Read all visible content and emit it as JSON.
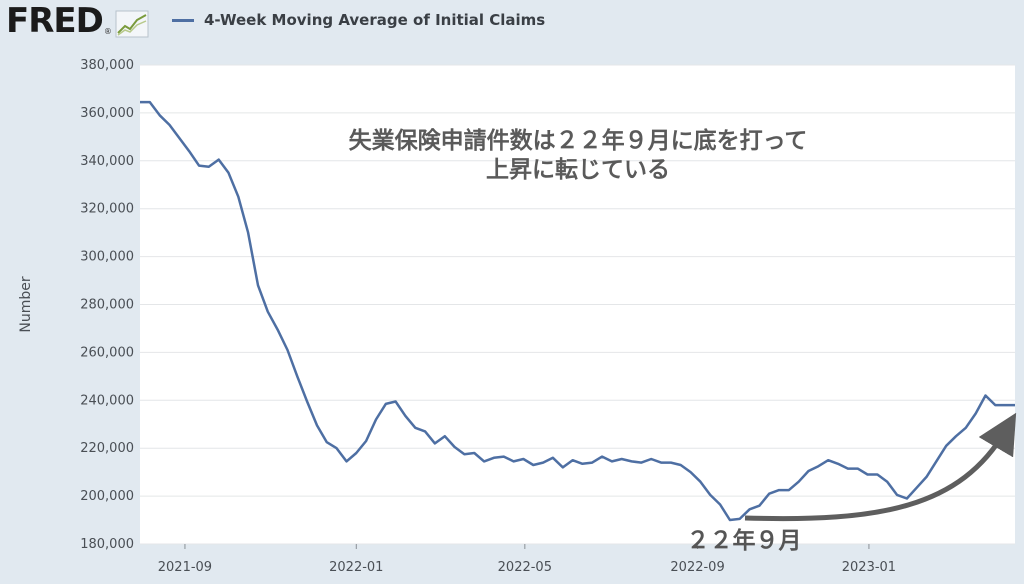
{
  "header": {
    "logo_text": "FRED",
    "logo_reg": "®",
    "legend_label": "4-Week Moving Average of Initial Claims",
    "series_color": "#4e6fa3"
  },
  "chart_data": {
    "type": "line",
    "title": "",
    "xlabel": "",
    "ylabel": "Number",
    "ylim": [
      180000,
      380000
    ],
    "yticks": [
      180000,
      200000,
      220000,
      240000,
      260000,
      280000,
      300000,
      320000,
      340000,
      360000,
      380000
    ],
    "ytick_labels": [
      "180,000",
      "200,000",
      "220,000",
      "240,000",
      "260,000",
      "280,000",
      "300,000",
      "320,000",
      "340,000",
      "360,000",
      "380,000"
    ],
    "xlim": [
      "2021-07-31",
      "2023-04-15"
    ],
    "xticks": [
      "2021-09-01",
      "2022-01-01",
      "2022-05-01",
      "2022-09-01",
      "2023-01-01"
    ],
    "xtick_labels": [
      "2021-09",
      "2022-01",
      "2022-05",
      "2022-09",
      "2023-01"
    ],
    "grid": true,
    "series": [
      {
        "name": "4-Week Moving Average of Initial Claims",
        "color": "#4e6fa3",
        "x": [
          "2021-07-31",
          "2021-08-07",
          "2021-08-14",
          "2021-08-21",
          "2021-08-28",
          "2021-09-04",
          "2021-09-11",
          "2021-09-18",
          "2021-09-25",
          "2021-10-02",
          "2021-10-09",
          "2021-10-16",
          "2021-10-23",
          "2021-10-30",
          "2021-11-06",
          "2021-11-13",
          "2021-11-20",
          "2021-11-27",
          "2021-12-04",
          "2021-12-11",
          "2021-12-18",
          "2021-12-25",
          "2022-01-01",
          "2022-01-08",
          "2022-01-15",
          "2022-01-22",
          "2022-01-29",
          "2022-02-05",
          "2022-02-12",
          "2022-02-19",
          "2022-02-26",
          "2022-03-05",
          "2022-03-12",
          "2022-03-19",
          "2022-03-26",
          "2022-04-02",
          "2022-04-09",
          "2022-04-16",
          "2022-04-23",
          "2022-04-30",
          "2022-05-07",
          "2022-05-14",
          "2022-05-21",
          "2022-05-28",
          "2022-06-04",
          "2022-06-11",
          "2022-06-18",
          "2022-06-25",
          "2022-07-02",
          "2022-07-09",
          "2022-07-16",
          "2022-07-23",
          "2022-07-30",
          "2022-08-06",
          "2022-08-13",
          "2022-08-20",
          "2022-08-27",
          "2022-09-03",
          "2022-09-10",
          "2022-09-17",
          "2022-09-24",
          "2022-10-01",
          "2022-10-08",
          "2022-10-15",
          "2022-10-22",
          "2022-10-29",
          "2022-11-05",
          "2022-11-12",
          "2022-11-19",
          "2022-11-26",
          "2022-12-03",
          "2022-12-10",
          "2022-12-17",
          "2022-12-24",
          "2022-12-31",
          "2023-01-07",
          "2023-01-14",
          "2023-01-21",
          "2023-01-28",
          "2023-02-04",
          "2023-02-11",
          "2023-02-18",
          "2023-02-25",
          "2023-03-04",
          "2023-03-11",
          "2023-03-18",
          "2023-03-25",
          "2023-04-01",
          "2023-04-08",
          "2023-04-15"
        ],
        "values": [
          364500,
          364500,
          359000,
          355000,
          349500,
          344000,
          338000,
          337500,
          340500,
          335000,
          325000,
          310000,
          288000,
          277000,
          269500,
          261000,
          250000,
          239500,
          229500,
          222500,
          220000,
          214500,
          218000,
          223000,
          232000,
          238500,
          239500,
          233500,
          228500,
          227000,
          222000,
          225000,
          220500,
          217500,
          218000,
          214500,
          216000,
          216500,
          214500,
          215500,
          213000,
          214000,
          216000,
          212000,
          215000,
          213500,
          214000,
          216500,
          214500,
          215500,
          214500,
          214000,
          215500,
          214000,
          214000,
          213000,
          210000,
          206000,
          200500,
          196500,
          190000,
          190500,
          194500,
          196000,
          201000,
          202500,
          202500,
          206000,
          210500,
          212500,
          215000,
          213500,
          211500,
          211500,
          209000,
          209000,
          206000,
          200500,
          199000,
          203500,
          208000,
          214500,
          221000,
          225000,
          228500,
          234500,
          242000,
          238000,
          238000,
          238000
        ]
      }
    ],
    "annotations": [
      {
        "line1": "失業保険申請件数は２２年９月に底を打って",
        "line2": "上昇に転じている"
      },
      {
        "text": "２２年９月"
      }
    ]
  }
}
